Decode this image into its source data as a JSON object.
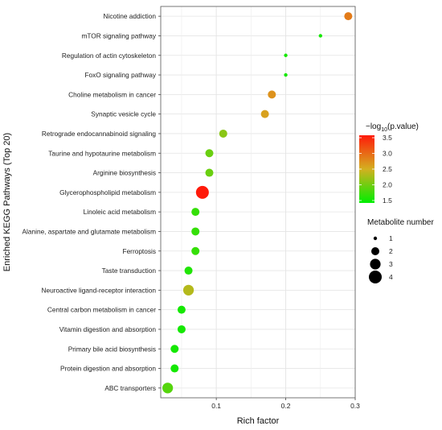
{
  "chart_data": {
    "type": "scatter",
    "xlabel": "Rich factor",
    "ylabel": "Enriched KEGG Pathways (Top 20)",
    "xlim": [
      0.02,
      0.3
    ],
    "xticks": [
      {
        "value": 0.1,
        "label": "0.1"
      },
      {
        "value": 0.2,
        "label": "0.2"
      },
      {
        "value": 0.3,
        "label": "0.3"
      }
    ],
    "grid": true,
    "points": [
      {
        "pathway": "Nicotine addiction",
        "rich_factor": 0.29,
        "neg_log10_p": 2.85,
        "metabolite_number": 2
      },
      {
        "pathway": "mTOR signaling pathway",
        "rich_factor": 0.25,
        "neg_log10_p": 1.6,
        "metabolite_number": 1
      },
      {
        "pathway": "Regulation of actin cytoskeleton",
        "rich_factor": 0.2,
        "neg_log10_p": 1.6,
        "metabolite_number": 1
      },
      {
        "pathway": "FoxO signaling pathway",
        "rich_factor": 0.2,
        "neg_log10_p": 1.6,
        "metabolite_number": 1
      },
      {
        "pathway": "Choline metabolism in cancer",
        "rich_factor": 0.18,
        "neg_log10_p": 2.7,
        "metabolite_number": 2
      },
      {
        "pathway": "Synaptic vesicle cycle",
        "rich_factor": 0.17,
        "neg_log10_p": 2.6,
        "metabolite_number": 2
      },
      {
        "pathway": "Retrograde endocannabinoid signaling",
        "rich_factor": 0.11,
        "neg_log10_p": 2.15,
        "metabolite_number": 2
      },
      {
        "pathway": "Taurine and hypotaurine metabolism",
        "rich_factor": 0.09,
        "neg_log10_p": 2.0,
        "metabolite_number": 2
      },
      {
        "pathway": "Arginine biosynthesis",
        "rich_factor": 0.09,
        "neg_log10_p": 2.0,
        "metabolite_number": 2
      },
      {
        "pathway": "Glycerophospholipid metabolism",
        "rich_factor": 0.08,
        "neg_log10_p": 3.5,
        "metabolite_number": 4
      },
      {
        "pathway": "Linoleic acid metabolism",
        "rich_factor": 0.07,
        "neg_log10_p": 1.75,
        "metabolite_number": 2
      },
      {
        "pathway": "Alanine, aspartate and glutamate metabolism",
        "rich_factor": 0.07,
        "neg_log10_p": 1.75,
        "metabolite_number": 2
      },
      {
        "pathway": "Ferroptosis",
        "rich_factor": 0.07,
        "neg_log10_p": 1.75,
        "metabolite_number": 2
      },
      {
        "pathway": "Taste transduction",
        "rich_factor": 0.06,
        "neg_log10_p": 1.65,
        "metabolite_number": 2
      },
      {
        "pathway": "Neuroactive ligand-receptor interaction",
        "rich_factor": 0.06,
        "neg_log10_p": 2.35,
        "metabolite_number": 3
      },
      {
        "pathway": "Central carbon metabolism in cancer",
        "rich_factor": 0.05,
        "neg_log10_p": 1.6,
        "metabolite_number": 2
      },
      {
        "pathway": "Vitamin digestion and absorption",
        "rich_factor": 0.05,
        "neg_log10_p": 1.6,
        "metabolite_number": 2
      },
      {
        "pathway": "Primary bile acid biosynthesis",
        "rich_factor": 0.04,
        "neg_log10_p": 1.6,
        "metabolite_number": 2
      },
      {
        "pathway": "Protein digestion and absorption",
        "rich_factor": 0.04,
        "neg_log10_p": 1.6,
        "metabolite_number": 2
      },
      {
        "pathway": "ABC transporters",
        "rich_factor": 0.03,
        "neg_log10_p": 1.9,
        "metabolite_number": 3
      }
    ],
    "color_legend": {
      "title_prefix": "−log",
      "title_subscript": "10",
      "title_suffix": "(p.value)",
      "ticks": [
        "3.5",
        "3.0",
        "2.5",
        "2.0",
        "1.5"
      ],
      "range": [
        1.5,
        3.5
      ],
      "low_color": "#00ee00",
      "mid_color": "#d4b020",
      "high_color": "#ff1a0a",
      "placement": "right"
    },
    "size_legend": {
      "title": "Metabolite number",
      "values": [
        1,
        2,
        3,
        4
      ],
      "labels": [
        "1",
        "2",
        "3",
        "4"
      ],
      "placement": "right"
    },
    "colors": {
      "panel_background": "#ffffff",
      "grid": "#e4e4e4",
      "panel_border": "#555555"
    }
  }
}
